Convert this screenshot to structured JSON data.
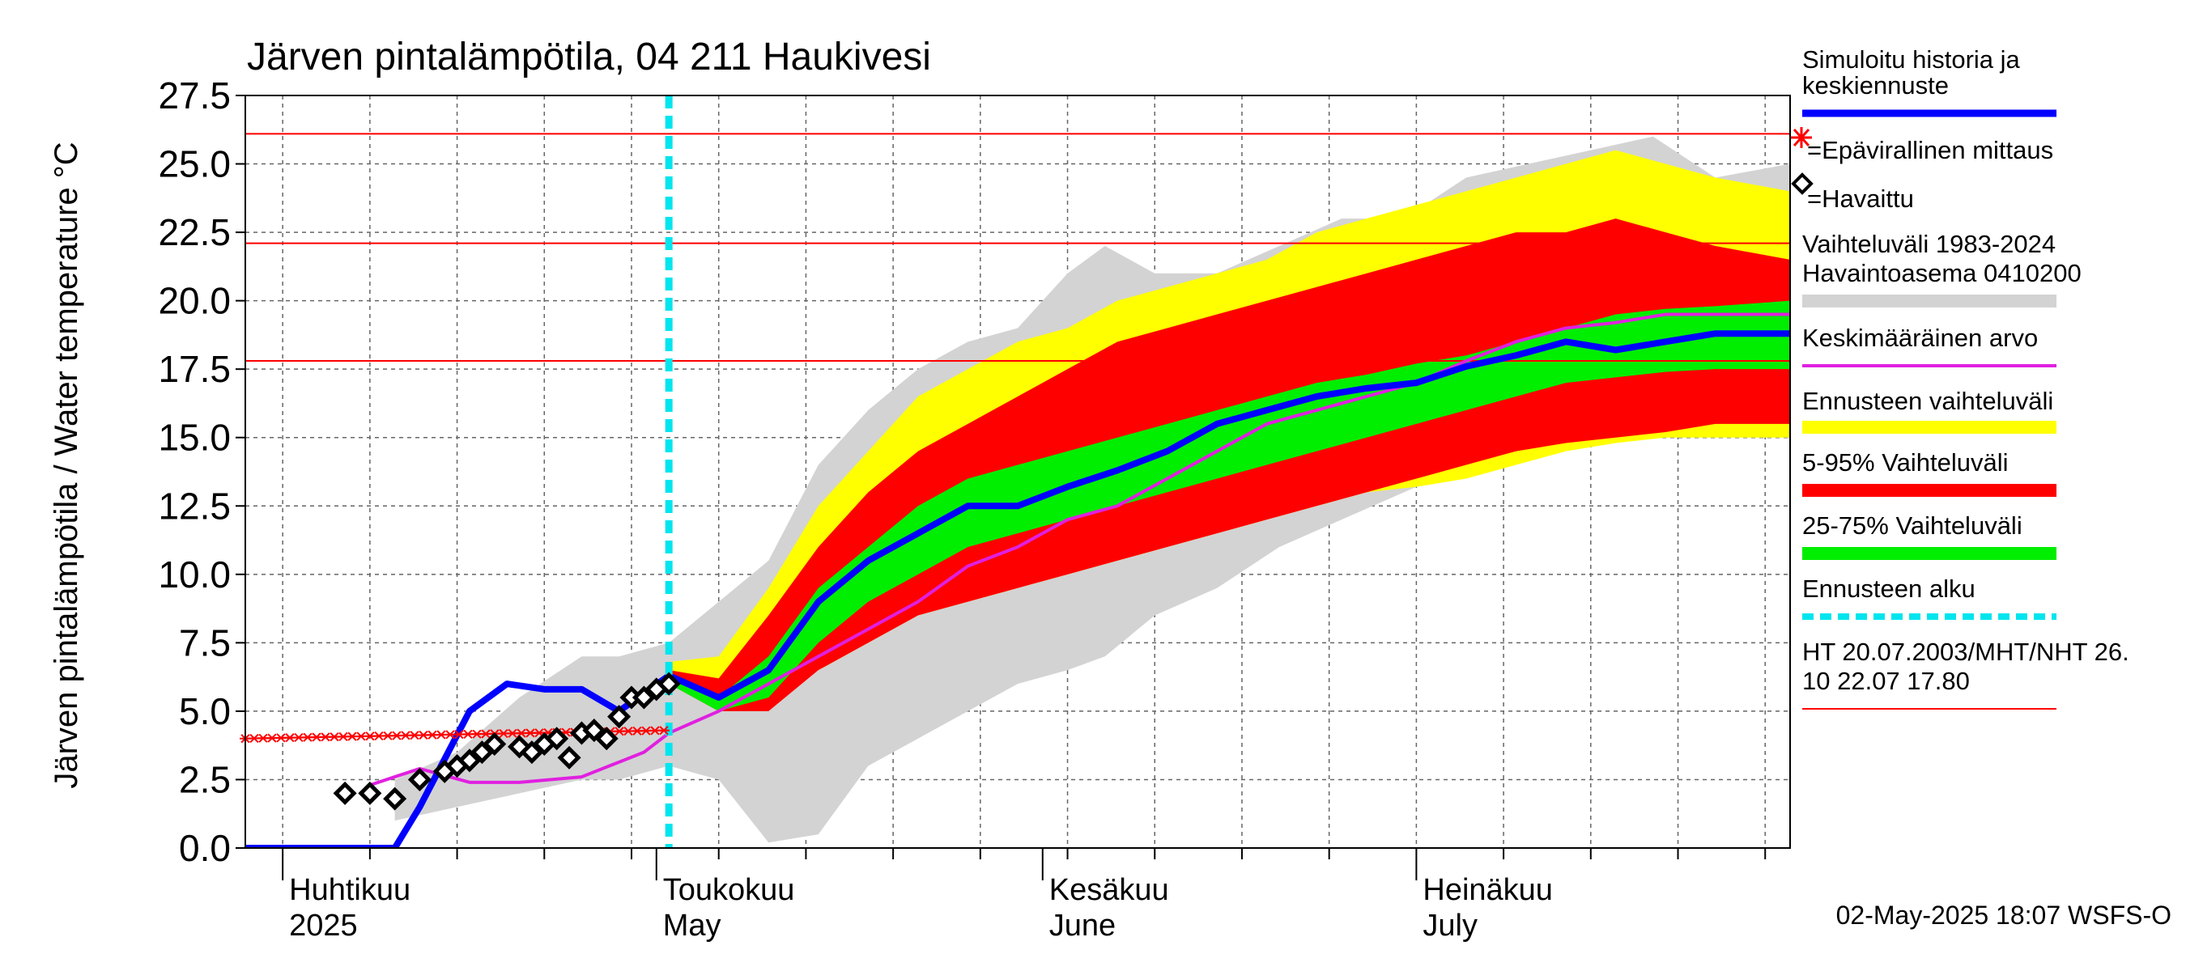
{
  "chart_data": {
    "type": "area",
    "title": "Järven pintalämpötila, 04 211 Haukivesi",
    "ylabel": "Järven pintalämpötila / Water temperature °C",
    "xlabel": "",
    "x_range": [
      "2025-03-29",
      "2025-07-31"
    ],
    "ylim": [
      0,
      27.5
    ],
    "y_ticks": [
      "0.0",
      "2.5",
      "5.0",
      "7.5",
      "10.0",
      "12.5",
      "15.0",
      "17.5",
      "20.0",
      "22.5",
      "25.0",
      "27.5"
    ],
    "grid": true,
    "legend_position": "right",
    "month_labels": [
      {
        "date": "2025-04-01",
        "fi": "Huhtikuu",
        "en": "2025"
      },
      {
        "date": "2025-05-01",
        "fi": "Toukokuu",
        "en": "May"
      },
      {
        "date": "2025-06-01",
        "fi": "Kesäkuu",
        "en": "June"
      },
      {
        "date": "2025-07-01",
        "fi": "Heinäkuu",
        "en": "July"
      }
    ],
    "forecast_start": "2025-05-02",
    "reference_lines": [
      {
        "label": "HT 20.07.2003",
        "value": 26.1,
        "color": "#ff0000"
      },
      {
        "label": "MHT",
        "value": 22.1,
        "color": "#ff0000"
      },
      {
        "label": "NHT 26.10 22.07",
        "value": 17.8,
        "color": "#ff0000"
      }
    ],
    "legend": [
      {
        "label": "Simuloitu historia ja keskiennuste",
        "color": "#0000ff"
      },
      {
        "label": "=Epävirallinen mittaus",
        "color": "#ff0000"
      },
      {
        "label": "=Havaittu",
        "color": "#000000"
      },
      {
        "label": "Vaihteluväli 1983-2024 Havaintoasema 0410200",
        "color": "#d3d3d3"
      },
      {
        "label": "Keskimääräinen arvo",
        "color": "#e020e0"
      },
      {
        "label": "Ennusteen vaihteluväli",
        "color": "#ffff00"
      },
      {
        "label": "5-95% Vaihteluväli",
        "color": "#ff0000"
      },
      {
        "label": "25-75% Vaihteluväli",
        "color": "#00ee00"
      },
      {
        "label": "Ennusteen alku",
        "color": "#00e5ee"
      },
      {
        "label": "HT 20.07.2003/MHT/NHT 26.10 22.07 17.80",
        "color": "#ff0000"
      }
    ],
    "footer": "02-May-2025 18:07 WSFS-O",
    "series": {
      "history_range_gray": {
        "x": [
          "2025-04-10",
          "2025-04-15",
          "2025-04-20",
          "2025-04-25",
          "2025-04-28",
          "2025-05-02",
          "2025-05-06",
          "2025-05-10",
          "2025-05-14",
          "2025-05-18",
          "2025-05-22",
          "2025-05-26",
          "2025-05-30",
          "2025-06-03",
          "2025-06-06",
          "2025-06-10",
          "2025-06-15",
          "2025-06-20",
          "2025-06-25",
          "2025-06-30",
          "2025-07-05",
          "2025-07-10",
          "2025-07-15",
          "2025-07-20",
          "2025-07-25",
          "2025-07-31"
        ],
        "upper": [
          2.5,
          3.5,
          5.5,
          7.0,
          7.0,
          7.5,
          9.0,
          10.5,
          14.0,
          16.0,
          17.5,
          18.5,
          19.0,
          21.0,
          22.0,
          21.0,
          21.0,
          22.0,
          23.0,
          23.0,
          24.5,
          25.0,
          25.5,
          26.0,
          24.5,
          25.0
        ],
        "lower": [
          1.0,
          1.5,
          2.0,
          2.5,
          2.5,
          3.0,
          2.5,
          0.2,
          0.5,
          3.0,
          4.0,
          5.0,
          6.0,
          6.5,
          7.0,
          8.5,
          9.5,
          11.0,
          12.0,
          13.0,
          14.0,
          14.5,
          15.0,
          15.0,
          15.0,
          15.0
        ]
      },
      "forecast_range_yellow": {
        "x": [
          "2025-05-02",
          "2025-05-06",
          "2025-05-10",
          "2025-05-14",
          "2025-05-18",
          "2025-05-22",
          "2025-05-26",
          "2025-05-30",
          "2025-06-03",
          "2025-06-07",
          "2025-06-11",
          "2025-06-15",
          "2025-06-19",
          "2025-06-23",
          "2025-06-27",
          "2025-07-01",
          "2025-07-05",
          "2025-07-09",
          "2025-07-13",
          "2025-07-17",
          "2025-07-21",
          "2025-07-25",
          "2025-07-31"
        ],
        "upper": [
          6.8,
          7.0,
          9.5,
          12.5,
          14.5,
          16.5,
          17.5,
          18.5,
          19.0,
          20.0,
          20.5,
          21.0,
          21.5,
          22.5,
          23.0,
          23.5,
          24.0,
          24.5,
          25.0,
          25.5,
          25.0,
          24.5,
          24.0
        ],
        "lower": [
          6.0,
          5.0,
          5.2,
          6.5,
          7.5,
          8.5,
          9.0,
          9.5,
          10.0,
          10.5,
          11.0,
          11.5,
          12.0,
          12.5,
          13.0,
          13.2,
          13.5,
          14.0,
          14.5,
          14.8,
          15.0,
          15.0,
          15.0
        ]
      },
      "range_5_95_red": {
        "x": [
          "2025-05-02",
          "2025-05-06",
          "2025-05-10",
          "2025-05-14",
          "2025-05-18",
          "2025-05-22",
          "2025-05-26",
          "2025-05-30",
          "2025-06-03",
          "2025-06-07",
          "2025-06-11",
          "2025-06-15",
          "2025-06-19",
          "2025-06-23",
          "2025-06-27",
          "2025-07-01",
          "2025-07-05",
          "2025-07-09",
          "2025-07-13",
          "2025-07-17",
          "2025-07-21",
          "2025-07-25",
          "2025-07-31"
        ],
        "upper": [
          6.5,
          6.2,
          8.5,
          11.0,
          13.0,
          14.5,
          15.5,
          16.5,
          17.5,
          18.5,
          19.0,
          19.5,
          20.0,
          20.5,
          21.0,
          21.5,
          22.0,
          22.5,
          22.5,
          23.0,
          22.5,
          22.0,
          21.5
        ],
        "lower": [
          6.0,
          5.0,
          5.0,
          6.5,
          7.5,
          8.5,
          9.0,
          9.5,
          10.0,
          10.5,
          11.0,
          11.5,
          12.0,
          12.5,
          13.0,
          13.5,
          14.0,
          14.5,
          14.8,
          15.0,
          15.2,
          15.5,
          15.5
        ]
      },
      "range_25_75_green": {
        "x": [
          "2025-05-02",
          "2025-05-06",
          "2025-05-10",
          "2025-05-14",
          "2025-05-18",
          "2025-05-22",
          "2025-05-26",
          "2025-05-30",
          "2025-06-03",
          "2025-06-07",
          "2025-06-11",
          "2025-06-15",
          "2025-06-19",
          "2025-06-23",
          "2025-06-27",
          "2025-07-01",
          "2025-07-05",
          "2025-07-09",
          "2025-07-13",
          "2025-07-17",
          "2025-07-21",
          "2025-07-25",
          "2025-07-31"
        ],
        "upper": [
          6.3,
          5.5,
          7.0,
          9.5,
          11.0,
          12.5,
          13.5,
          14.0,
          14.5,
          15.0,
          15.5,
          16.0,
          16.5,
          17.0,
          17.3,
          17.7,
          18.0,
          18.5,
          19.0,
          19.5,
          19.7,
          19.8,
          20.0
        ],
        "lower": [
          6.0,
          5.0,
          5.5,
          7.5,
          9.0,
          10.0,
          11.0,
          11.5,
          12.0,
          12.5,
          13.0,
          13.5,
          14.0,
          14.5,
          15.0,
          15.5,
          16.0,
          16.5,
          17.0,
          17.2,
          17.4,
          17.5,
          17.5
        ]
      },
      "simulated_mean_blue": {
        "x": [
          "2025-03-29",
          "2025-04-10",
          "2025-04-12",
          "2025-04-16",
          "2025-04-19",
          "2025-04-22",
          "2025-04-25",
          "2025-04-28",
          "2025-05-02",
          "2025-05-06",
          "2025-05-10",
          "2025-05-14",
          "2025-05-18",
          "2025-05-22",
          "2025-05-26",
          "2025-05-30",
          "2025-06-03",
          "2025-06-07",
          "2025-06-11",
          "2025-06-15",
          "2025-06-19",
          "2025-06-23",
          "2025-06-27",
          "2025-07-01",
          "2025-07-05",
          "2025-07-09",
          "2025-07-13",
          "2025-07-17",
          "2025-07-21",
          "2025-07-25",
          "2025-07-29",
          "2025-07-31"
        ],
        "y": [
          0,
          0,
          1.5,
          5.0,
          6.0,
          5.8,
          5.8,
          5.0,
          6.3,
          5.5,
          6.5,
          9.0,
          10.5,
          11.5,
          12.5,
          12.5,
          13.2,
          13.8,
          14.5,
          15.5,
          16.0,
          16.5,
          16.8,
          17.0,
          17.6,
          18.0,
          18.5,
          18.2,
          18.5,
          18.8,
          18.8,
          18.8
        ]
      },
      "long_term_mean_magenta": {
        "x": [
          "2025-04-08",
          "2025-04-10",
          "2025-04-12",
          "2025-04-16",
          "2025-04-20",
          "2025-04-25",
          "2025-04-30",
          "2025-05-02",
          "2025-05-06",
          "2025-05-10",
          "2025-05-14",
          "2025-05-18",
          "2025-05-22",
          "2025-05-26",
          "2025-05-30",
          "2025-06-03",
          "2025-06-07",
          "2025-06-11",
          "2025-06-15",
          "2025-06-19",
          "2025-06-23",
          "2025-06-27",
          "2025-07-01",
          "2025-07-05",
          "2025-07-09",
          "2025-07-13",
          "2025-07-17",
          "2025-07-21",
          "2025-07-25",
          "2025-07-31"
        ],
        "y": [
          2.3,
          2.6,
          2.9,
          2.4,
          2.4,
          2.6,
          3.5,
          4.2,
          5.0,
          6.0,
          7.0,
          8.0,
          9.0,
          10.3,
          11.0,
          12.0,
          12.5,
          13.5,
          14.5,
          15.5,
          16.0,
          16.5,
          17.0,
          17.8,
          18.5,
          19.0,
          19.2,
          19.5,
          19.5,
          19.5
        ]
      },
      "observed": {
        "x": [
          "2025-04-06",
          "2025-04-08",
          "2025-04-10",
          "2025-04-12",
          "2025-04-14",
          "2025-04-15",
          "2025-04-16",
          "2025-04-17",
          "2025-04-18",
          "2025-04-20",
          "2025-04-21",
          "2025-04-22",
          "2025-04-23",
          "2025-04-24",
          "2025-04-25",
          "2025-04-26",
          "2025-04-27",
          "2025-04-28",
          "2025-04-29",
          "2025-04-30",
          "2025-05-01",
          "2025-05-02"
        ],
        "y": [
          2.0,
          2.0,
          1.8,
          2.5,
          2.8,
          3.0,
          3.2,
          3.5,
          3.8,
          3.7,
          3.5,
          3.8,
          4.0,
          3.3,
          4.2,
          4.3,
          4.0,
          4.8,
          5.5,
          5.5,
          5.8,
          6.0
        ]
      },
      "unofficial_measurement": {
        "x_start": "2025-03-29",
        "x_end": "2025-05-02",
        "y_start": 4.0,
        "y_end": 4.3
      }
    }
  }
}
